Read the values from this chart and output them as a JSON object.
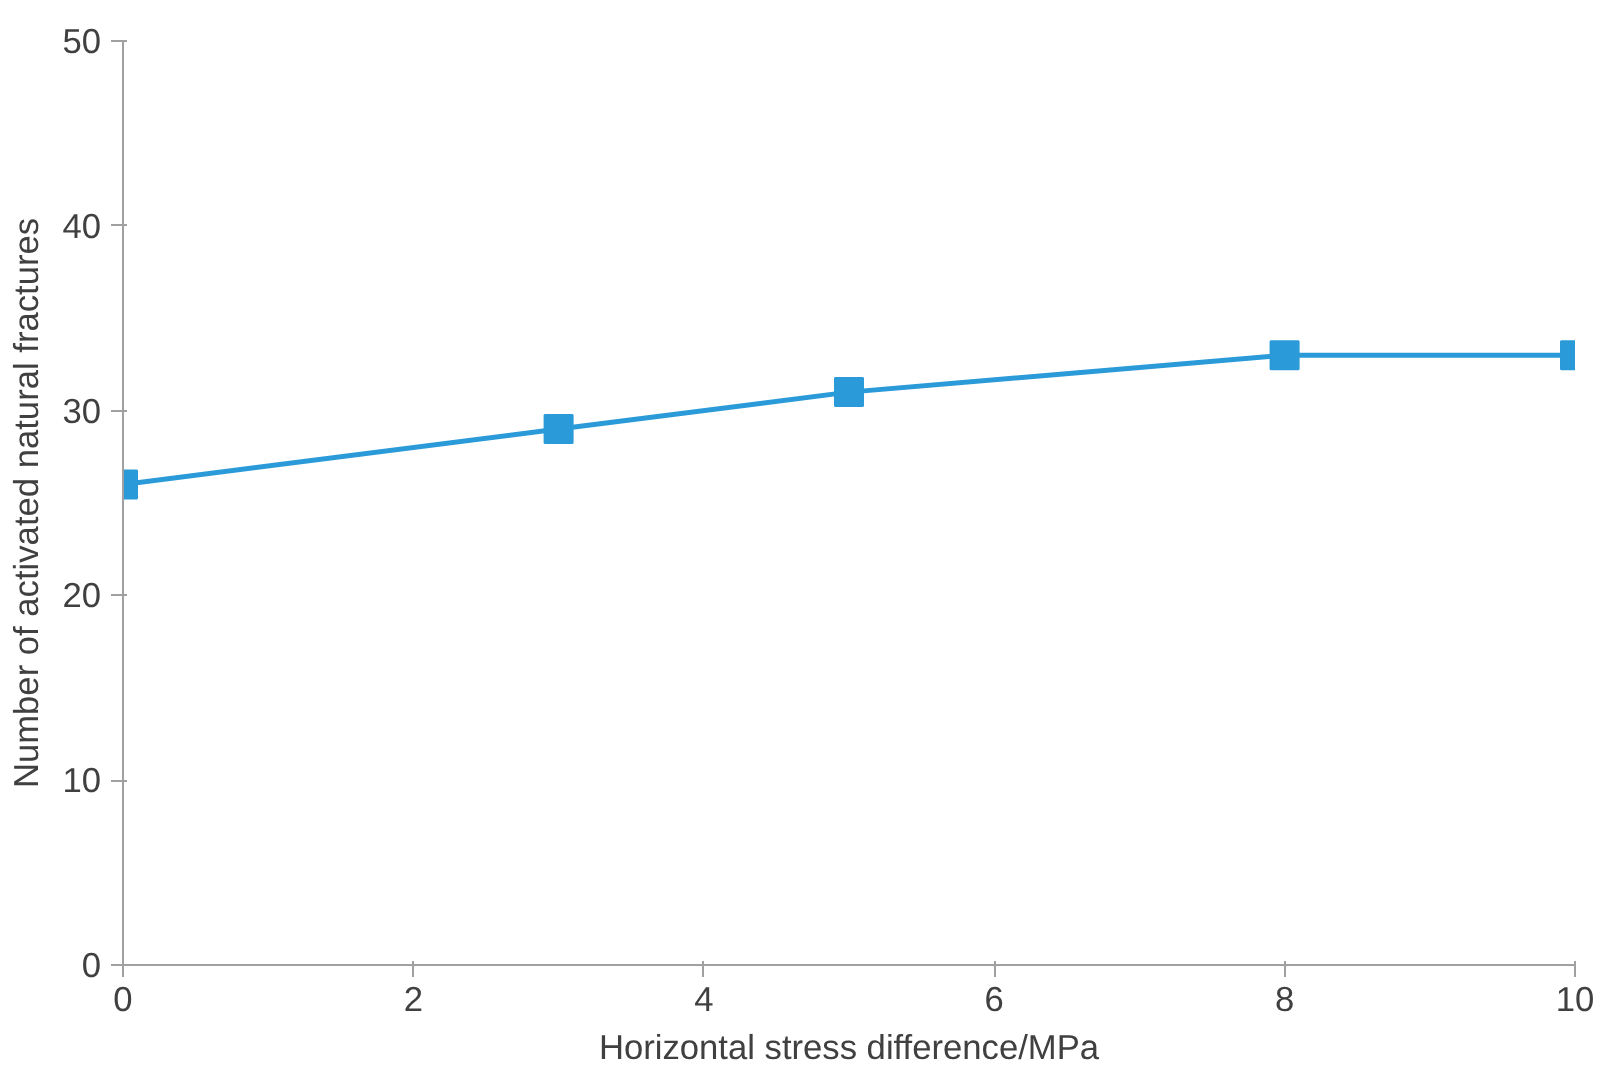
{
  "chart_data": {
    "type": "line",
    "xlabel": "Horizontal stress difference/MPa",
    "ylabel": "Number of activated natural fractures",
    "x": [
      0,
      3,
      5,
      8,
      10
    ],
    "series": [
      {
        "color": "#2a9ad8",
        "values": [
          26,
          29,
          31,
          33,
          33
        ]
      }
    ],
    "xlim": [
      0,
      10
    ],
    "xticks": [
      0,
      2,
      4,
      6,
      8,
      10
    ],
    "ylim": [
      0,
      50
    ],
    "yticks": [
      0,
      10,
      20,
      30,
      40,
      50
    ],
    "grid": false,
    "marker": "square",
    "line_style": "solid"
  }
}
